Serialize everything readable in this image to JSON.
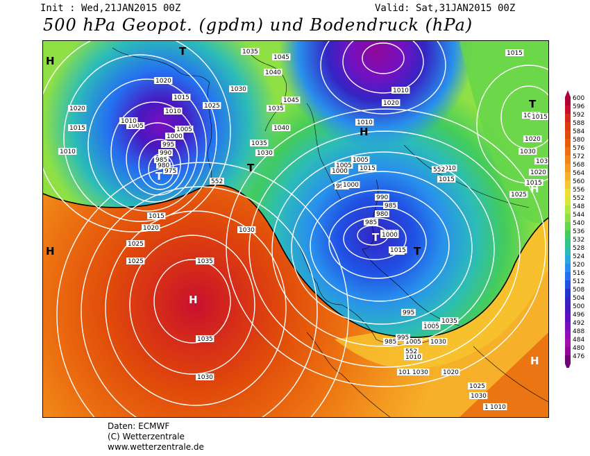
{
  "header": {
    "init": "Init : Wed,21JAN2015 00Z",
    "valid": "Valid: Sat,31JAN2015 00Z",
    "title": "500 hPa Geopot. (gpdm) und Bodendruck (hPa)"
  },
  "footer": {
    "line1": "Daten: ECMWF",
    "line2": "(C) Wetterzentrale",
    "line3": "www.wetterzentrale.de"
  },
  "legend": {
    "levels": [
      "600",
      "596",
      "592",
      "588",
      "584",
      "580",
      "576",
      "572",
      "568",
      "564",
      "560",
      "556",
      "552",
      "548",
      "544",
      "540",
      "536",
      "532",
      "528",
      "524",
      "520",
      "516",
      "512",
      "508",
      "504",
      "500",
      "496",
      "492",
      "488",
      "484",
      "480",
      "476"
    ],
    "colors": [
      "#b0003a",
      "#c8102e",
      "#d42a1a",
      "#dc3b10",
      "#e04a0a",
      "#e65c08",
      "#ec7010",
      "#f08418",
      "#f49a20",
      "#f6b02a",
      "#f8c630",
      "#f2dc36",
      "#d8e63a",
      "#b4e83e",
      "#8ee044",
      "#66d64a",
      "#44cc5a",
      "#34c48a",
      "#2cbcb8",
      "#28a8dc",
      "#2890ec",
      "#2470f0",
      "#2050e4",
      "#2034d0",
      "#3424c4",
      "#4818c0",
      "#6010c0",
      "#7810c0",
      "#9010b8",
      "#a010a8",
      "#900898",
      "#700078"
    ]
  },
  "map": {
    "pressure_labels": [
      "1035",
      "1045",
      "1040",
      "1045",
      "1035",
      "1030",
      "1040",
      "1035",
      "1030",
      "1025",
      "1020",
      "1015",
      "1010",
      "1005",
      "1000",
      "995",
      "990",
      "985",
      "980",
      "975",
      "1005",
      "1010",
      "1015",
      "1020",
      "1025",
      "1030",
      "1035",
      "1035",
      "1030",
      "1025",
      "1020",
      "1015",
      "1010",
      "1005",
      "1000",
      "995",
      "990",
      "985",
      "980",
      "985",
      "990",
      "995",
      "1000",
      "1005",
      "1010",
      "1015",
      "1020",
      "1025",
      "1030",
      "1010",
      "1005",
      "1000",
      "1015",
      "1020",
      "1015",
      "1010",
      "1010",
      "1015",
      "1020",
      "1030",
      "1030",
      "1025",
      "1020",
      "1015",
      "1010",
      "1015",
      "1005",
      "1035",
      "1030",
      "1010",
      "1015",
      "1000",
      "995",
      "985",
      "552",
      "552",
      "552",
      "1030",
      "1025",
      "1010"
    ],
    "highs_lows": [
      "H",
      "T",
      "T",
      "T",
      "H",
      "T",
      "T",
      "H",
      "H",
      "T",
      "H",
      "H"
    ]
  }
}
